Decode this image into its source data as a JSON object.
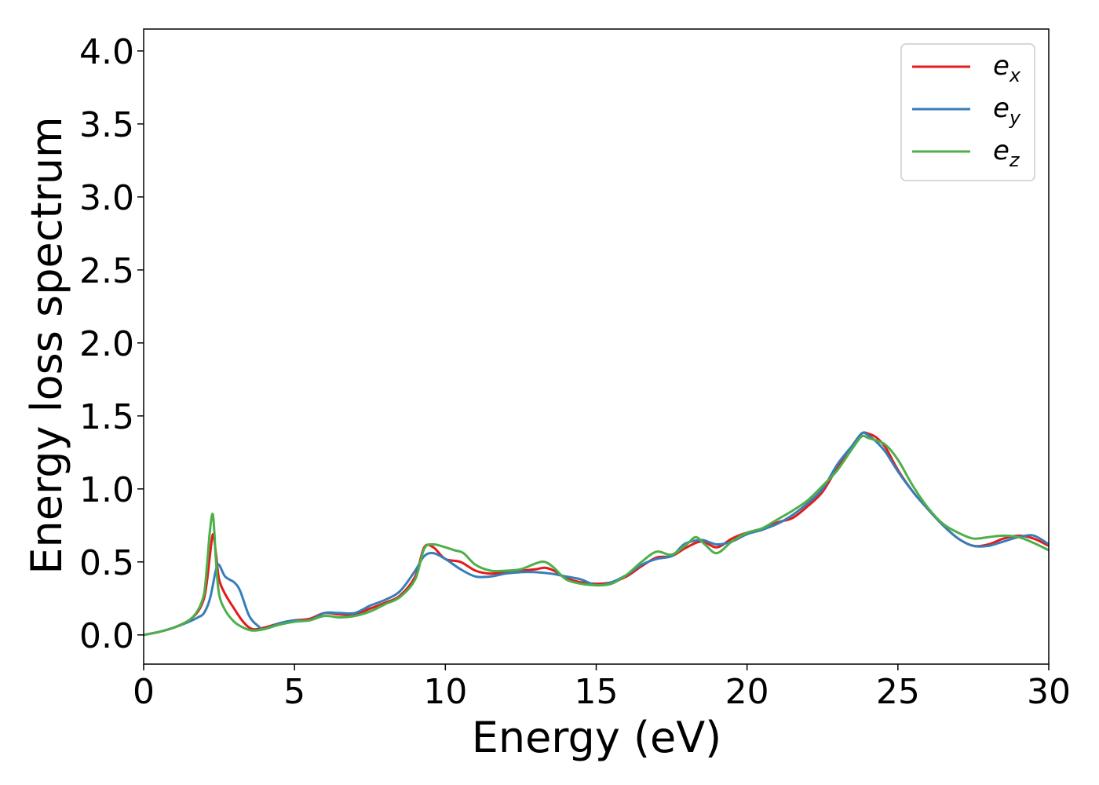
{
  "chart_data": {
    "type": "line",
    "xlabel": "Energy (eV)",
    "ylabel": "Energy loss spectrum",
    "xlim": [
      0,
      30
    ],
    "ylim": [
      -0.2,
      4.15
    ],
    "xticks": [
      "0",
      "5",
      "10",
      "15",
      "20",
      "25",
      "30"
    ],
    "yticks": [
      "0.0",
      "0.5",
      "1.0",
      "1.5",
      "2.0",
      "2.5",
      "3.0",
      "3.5",
      "4.0"
    ],
    "legend_position": "top-right",
    "grid": false,
    "series": [
      {
        "name": "e",
        "subscript": "x",
        "color": "#e41a1c",
        "x": [
          0,
          0.5,
          1,
          1.5,
          1.8,
          2,
          2.1,
          2.2,
          2.3,
          2.4,
          2.5,
          2.7,
          3,
          3.3,
          3.6,
          4,
          4.5,
          5,
          5.5,
          6,
          6.5,
          7,
          7.5,
          8,
          8.5,
          9,
          9.3,
          9.6,
          10,
          10.5,
          11,
          11.5,
          12,
          12.5,
          13,
          13.3,
          13.6,
          14,
          14.5,
          15,
          15.5,
          16,
          16.5,
          17,
          17.5,
          18,
          18.5,
          19,
          19.5,
          20,
          20.5,
          21,
          21.5,
          22,
          22.5,
          23,
          23.5,
          23.8,
          24,
          24.3,
          24.6,
          25,
          25.5,
          26,
          26.5,
          27,
          27.5,
          28,
          28.5,
          29,
          29.5,
          30
        ],
        "y": [
          0,
          0.02,
          0.05,
          0.1,
          0.16,
          0.25,
          0.37,
          0.55,
          0.69,
          0.55,
          0.38,
          0.28,
          0.18,
          0.09,
          0.04,
          0.05,
          0.08,
          0.1,
          0.11,
          0.15,
          0.14,
          0.14,
          0.18,
          0.22,
          0.27,
          0.4,
          0.6,
          0.6,
          0.52,
          0.5,
          0.44,
          0.42,
          0.43,
          0.44,
          0.45,
          0.46,
          0.44,
          0.39,
          0.36,
          0.35,
          0.36,
          0.4,
          0.47,
          0.53,
          0.54,
          0.6,
          0.64,
          0.6,
          0.66,
          0.7,
          0.72,
          0.77,
          0.8,
          0.88,
          0.98,
          1.15,
          1.3,
          1.38,
          1.38,
          1.35,
          1.28,
          1.13,
          0.98,
          0.86,
          0.75,
          0.66,
          0.61,
          0.62,
          0.66,
          0.68,
          0.66,
          0.61
        ]
      },
      {
        "name": "e",
        "subscript": "y",
        "color": "#377eb8",
        "x": [
          0,
          0.5,
          1,
          1.5,
          1.8,
          2,
          2.2,
          2.4,
          2.5,
          2.7,
          3,
          3.2,
          3.5,
          3.8,
          4,
          4.5,
          5,
          5.5,
          6,
          6.5,
          7,
          7.5,
          8,
          8.5,
          9,
          9.3,
          9.6,
          10,
          10.5,
          11,
          11.5,
          12,
          12.5,
          13,
          13.5,
          14,
          14.5,
          15,
          15.5,
          16,
          16.5,
          17,
          17.5,
          17.8,
          18,
          18.5,
          19,
          19.5,
          20,
          20.5,
          21,
          21.5,
          22,
          22.5,
          23,
          23.5,
          23.8,
          24,
          24.3,
          24.6,
          25,
          25.5,
          26,
          26.5,
          27,
          27.5,
          28,
          28.5,
          29,
          29.5,
          30
        ],
        "y": [
          0,
          0.02,
          0.05,
          0.09,
          0.12,
          0.15,
          0.25,
          0.45,
          0.48,
          0.4,
          0.36,
          0.3,
          0.13,
          0.06,
          0.04,
          0.08,
          0.1,
          0.1,
          0.15,
          0.15,
          0.15,
          0.2,
          0.24,
          0.3,
          0.44,
          0.54,
          0.56,
          0.52,
          0.45,
          0.4,
          0.4,
          0.42,
          0.43,
          0.43,
          0.42,
          0.4,
          0.38,
          0.34,
          0.36,
          0.41,
          0.48,
          0.52,
          0.54,
          0.6,
          0.63,
          0.65,
          0.62,
          0.64,
          0.69,
          0.72,
          0.76,
          0.82,
          0.9,
          1.0,
          1.17,
          1.3,
          1.38,
          1.37,
          1.32,
          1.25,
          1.12,
          0.98,
          0.86,
          0.75,
          0.66,
          0.61,
          0.61,
          0.64,
          0.67,
          0.68,
          0.62
        ]
      },
      {
        "name": "e",
        "subscript": "z",
        "color": "#4daf4a",
        "x": [
          0,
          0.5,
          1,
          1.5,
          1.8,
          2,
          2.1,
          2.2,
          2.3,
          2.4,
          2.5,
          2.7,
          3,
          3.3,
          3.6,
          4,
          4.5,
          5,
          5.5,
          6,
          6.5,
          7,
          7.5,
          8,
          8.5,
          9,
          9.3,
          9.6,
          10,
          10.3,
          10.6,
          11,
          11.5,
          12,
          12.5,
          13,
          13.3,
          13.6,
          14,
          14.5,
          15,
          15.5,
          16,
          16.5,
          17,
          17.5,
          18,
          18.3,
          18.6,
          19,
          19.5,
          20,
          20.5,
          21,
          21.5,
          22,
          22.5,
          23,
          23.5,
          23.8,
          24,
          24.3,
          24.6,
          25,
          25.5,
          26,
          26.5,
          27,
          27.5,
          28,
          28.5,
          29,
          29.5,
          30
        ],
        "y": [
          0,
          0.02,
          0.05,
          0.1,
          0.17,
          0.28,
          0.48,
          0.72,
          0.82,
          0.5,
          0.28,
          0.17,
          0.09,
          0.05,
          0.03,
          0.04,
          0.07,
          0.09,
          0.1,
          0.13,
          0.12,
          0.13,
          0.16,
          0.21,
          0.26,
          0.38,
          0.59,
          0.62,
          0.6,
          0.58,
          0.56,
          0.48,
          0.44,
          0.44,
          0.45,
          0.49,
          0.5,
          0.46,
          0.38,
          0.35,
          0.34,
          0.35,
          0.41,
          0.5,
          0.57,
          0.55,
          0.62,
          0.67,
          0.62,
          0.56,
          0.64,
          0.7,
          0.73,
          0.79,
          0.85,
          0.92,
          1.02,
          1.13,
          1.28,
          1.36,
          1.35,
          1.33,
          1.3,
          1.2,
          1.02,
          0.87,
          0.76,
          0.7,
          0.66,
          0.67,
          0.68,
          0.67,
          0.63,
          0.58
        ]
      }
    ]
  }
}
